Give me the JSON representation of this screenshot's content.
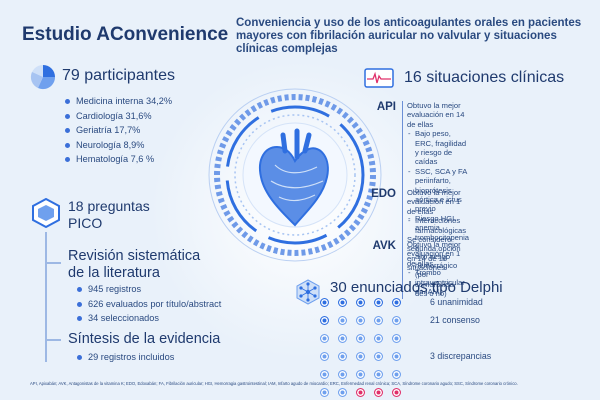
{
  "header": {
    "title": "Estudio AConvenience",
    "subtitle": "Conveniencia y uso de los anticoagulantes orales en pacientes mayores con fibrilación auricular no valvular y situaciones clínicas complejas"
  },
  "participants": {
    "heading": "79 participantes",
    "items": [
      "Medicina interna 34,2%",
      "Cardiología 31,6%",
      "Geriatría 17,7%",
      "Neurología 8,9%",
      "Hematología 7,6 %"
    ]
  },
  "pico": {
    "heading": "18 preguntas PICO",
    "heading_line1": "18 preguntas",
    "heading_line2": "PICO"
  },
  "review": {
    "heading_line1": "Revisión sistemática",
    "heading_line2": "de la literatura",
    "items": [
      "945 registros",
      "626 evaluados por título/abstract",
      "34 seleccionados"
    ]
  },
  "synthesis": {
    "heading": "Síntesis de la evidencia",
    "items": [
      "29 registros incluidos"
    ]
  },
  "situations": {
    "heading": "16 situaciones clínicas",
    "agents": [
      {
        "label": "API",
        "lines": [
          "Obtuvo la mejor evaluación en 14 de ellas"
        ],
        "subs": [
          [
            "Bajo peso, ERC, fragilidad y riesgo de",
            "caídas"
          ],
          [
            "SSC, SCA y FA periinfarto, bioprótesis",
            "aórtica e ictus previo"
          ],
          [
            "Riesgo HGI, anemia, trombocitopenia y",
            "alto riesgo hemorrágico (por comorbilida-",
            "des o no)"
          ]
        ]
      },
      {
        "label": "EDO",
        "lines": [
          "Obtuvo la mejor evaluación en 1 de ellas"
        ],
        "subs": [
          [
            "Interacciones farmacológicas"
          ]
        ],
        "extra": [
          "Se consideró segunda opción en 14 de 16",
          "situaciones."
        ]
      },
      {
        "label": "AVK",
        "lines": [
          "Obtuvo la mejor evaluación en 1 de ellas"
        ],
        "subs": [
          [
            "Trombo intraventricular en IAM"
          ]
        ]
      }
    ]
  },
  "delphi": {
    "heading": "30 enunciados tipo Delphi",
    "counts": {
      "unanimity": 6,
      "consensus": 21,
      "discrepancy": 3
    },
    "labels": [
      "6 unanimidad",
      "21 consenso",
      "3 discrepancias"
    ],
    "colors": {
      "unanimity": "#2f6fe0",
      "consensus": "#6fa0ee",
      "discrepancy": "#e0306a"
    }
  },
  "footnote": "API, Apixabán; AVK, Antagonistas de la vitamina K; EDO, Edoxabán; FA, Fibrilación auricular; HGI, Hemorragia gastrointestinal; IAM, Infarto agudo de miocardio; ERC, Enfermedad renal crónica; SCA, Síndrome coronario agudo; SSC, Síndrome coronario crónico."
}
